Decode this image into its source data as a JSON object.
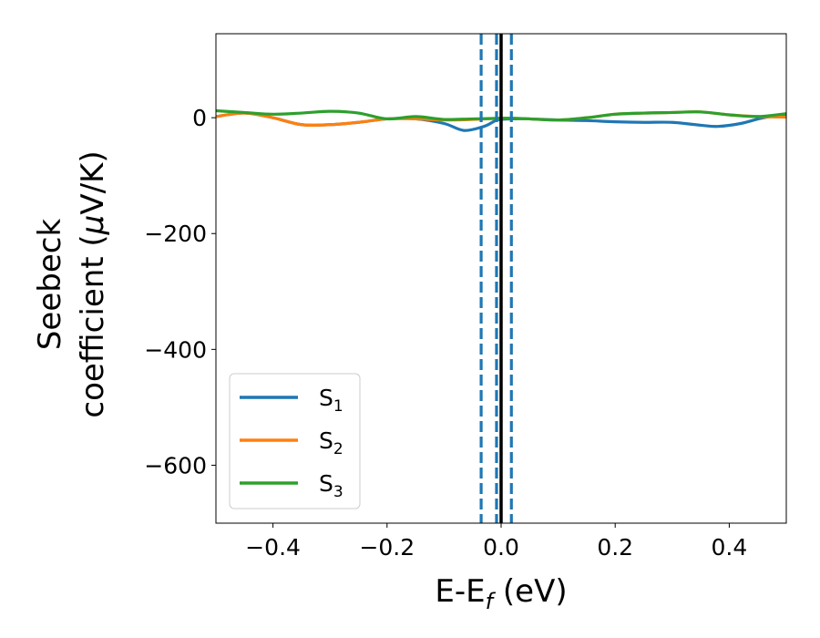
{
  "chart_data": {
    "type": "line",
    "xlabel": "E-E",
    "xlabel_sub": "f",
    "xlabel_unit": " (eV)",
    "ylabel_line1": "Seebeck",
    "ylabel_line2": "coefficient  (",
    "ylabel_mu": "μ",
    "ylabel_unit": "V/K)",
    "xlim": [
      -0.5,
      0.5
    ],
    "ylim": [
      -700,
      145
    ],
    "xticks": [
      -0.4,
      -0.2,
      0.0,
      0.2,
      0.4
    ],
    "xtick_labels": [
      "−0.4",
      "−0.2",
      "0.0",
      "0.2",
      "0.4"
    ],
    "yticks": [
      0,
      -200,
      -400,
      -600
    ],
    "ytick_labels": [
      "0",
      "−200",
      "−400",
      "−600"
    ],
    "legend_position": "lower-left",
    "series": [
      {
        "name": "S",
        "sub": "1",
        "color": "#1f77b4",
        "x": [
          -0.5,
          -0.45,
          -0.4,
          -0.35,
          -0.3,
          -0.25,
          -0.2,
          -0.15,
          -0.1,
          -0.065,
          -0.03,
          -0.01,
          0.0,
          0.02,
          0.05,
          0.1,
          0.15,
          0.2,
          0.25,
          0.3,
          0.35,
          0.38,
          0.42,
          0.46,
          0.5
        ],
        "y": [
          2,
          8,
          0,
          -12,
          -12,
          -8,
          -2,
          -2,
          -10,
          -22,
          -15,
          -5,
          -3,
          -2,
          -2,
          -4,
          -5,
          -7,
          -8,
          -8,
          -13,
          -15,
          -10,
          0,
          5
        ]
      },
      {
        "name": "S",
        "sub": "2",
        "color": "#ff7f0e",
        "x": [
          -0.5,
          -0.45,
          -0.4,
          -0.35,
          -0.3,
          -0.25,
          -0.2,
          -0.15,
          -0.1,
          -0.05,
          0.0,
          0.02,
          0.05,
          0.1,
          0.15,
          0.2,
          0.25,
          0.3,
          0.35,
          0.4,
          0.45,
          0.5
        ],
        "y": [
          2,
          8,
          0,
          -12,
          -12,
          -8,
          -2,
          -2,
          -4,
          -3,
          -1,
          -1,
          -2,
          -4,
          0,
          6,
          8,
          9,
          10,
          5,
          2,
          1
        ]
      },
      {
        "name": "S",
        "sub": "3",
        "color": "#2ca02c",
        "x": [
          -0.5,
          -0.45,
          -0.4,
          -0.35,
          -0.3,
          -0.25,
          -0.2,
          -0.15,
          -0.1,
          -0.05,
          0.0,
          0.02,
          0.05,
          0.1,
          0.15,
          0.2,
          0.25,
          0.3,
          0.35,
          0.4,
          0.45,
          0.5
        ],
        "y": [
          12,
          9,
          6,
          8,
          11,
          8,
          -2,
          2,
          -3,
          -2,
          -1,
          -1,
          -2,
          -4,
          0,
          6,
          8,
          9,
          10,
          5,
          2,
          7
        ]
      }
    ],
    "vlines": [
      {
        "x": -0.035,
        "style": "dashed",
        "color": "#1f77b4"
      },
      {
        "x": -0.008,
        "style": "dashed",
        "color": "#1f77b4"
      },
      {
        "x": 0.0,
        "style": "solid",
        "color": "#000000"
      },
      {
        "x": 0.018,
        "style": "dashed",
        "color": "#1f77b4"
      }
    ]
  }
}
